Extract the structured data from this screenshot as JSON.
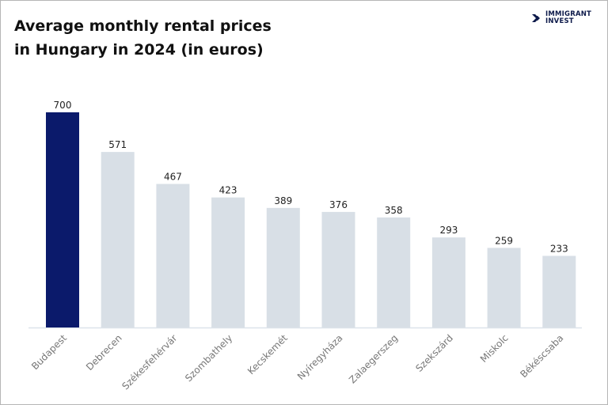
{
  "title_lines": [
    "Average monthly rental prices",
    "in Hungary in 2024 (in euros)"
  ],
  "logo": {
    "line1": "IMMIGRANT",
    "line2": "INVEST"
  },
  "colors": {
    "highlight": "#0b1a6b",
    "bar": "#d8dfe6",
    "axis": "#dde3ea",
    "label": "#777777"
  },
  "chart_data": {
    "type": "bar",
    "title": "Average monthly rental prices in Hungary in 2024 (in euros)",
    "categories": [
      "Budapest",
      "Debrecen",
      "Székesfehérvár",
      "Szombathely",
      "Kecskemét",
      "Nyíregyháza",
      "Zalaegerszeg",
      "Szekszárd",
      "Miskolc",
      "Békéscsaba"
    ],
    "values": [
      700,
      571,
      467,
      423,
      389,
      376,
      358,
      293,
      259,
      233
    ],
    "highlight": "Budapest",
    "ylim": [
      0,
      700
    ],
    "grid": false,
    "legend": "none"
  }
}
